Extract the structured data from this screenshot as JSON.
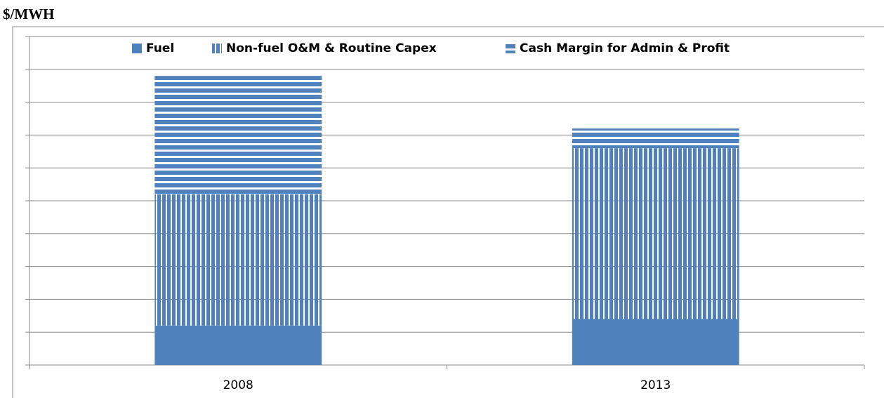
{
  "chart_data": {
    "type": "stacked_bar",
    "title": "$/MWH",
    "categories": [
      "2008",
      "2013"
    ],
    "series": [
      {
        "name": "Fuel",
        "color": "#4f81bd",
        "pattern": "solid",
        "values": [
          1.2,
          1.4
        ]
      },
      {
        "name": "Non-fuel O&M & Routine Capex",
        "color": "#4f81bd",
        "pattern": "vertical",
        "values": [
          4.0,
          5.2
        ]
      },
      {
        "name": "Cash Margin for Admin & Profit",
        "color": "#4f81bd",
        "pattern": "horizontal",
        "values": [
          3.6,
          0.6
        ]
      }
    ],
    "ylim": [
      0,
      10
    ],
    "yticks": [
      0,
      1,
      2,
      3,
      4,
      5,
      6,
      7,
      8,
      9,
      10
    ],
    "grid": true,
    "legend": "top"
  }
}
